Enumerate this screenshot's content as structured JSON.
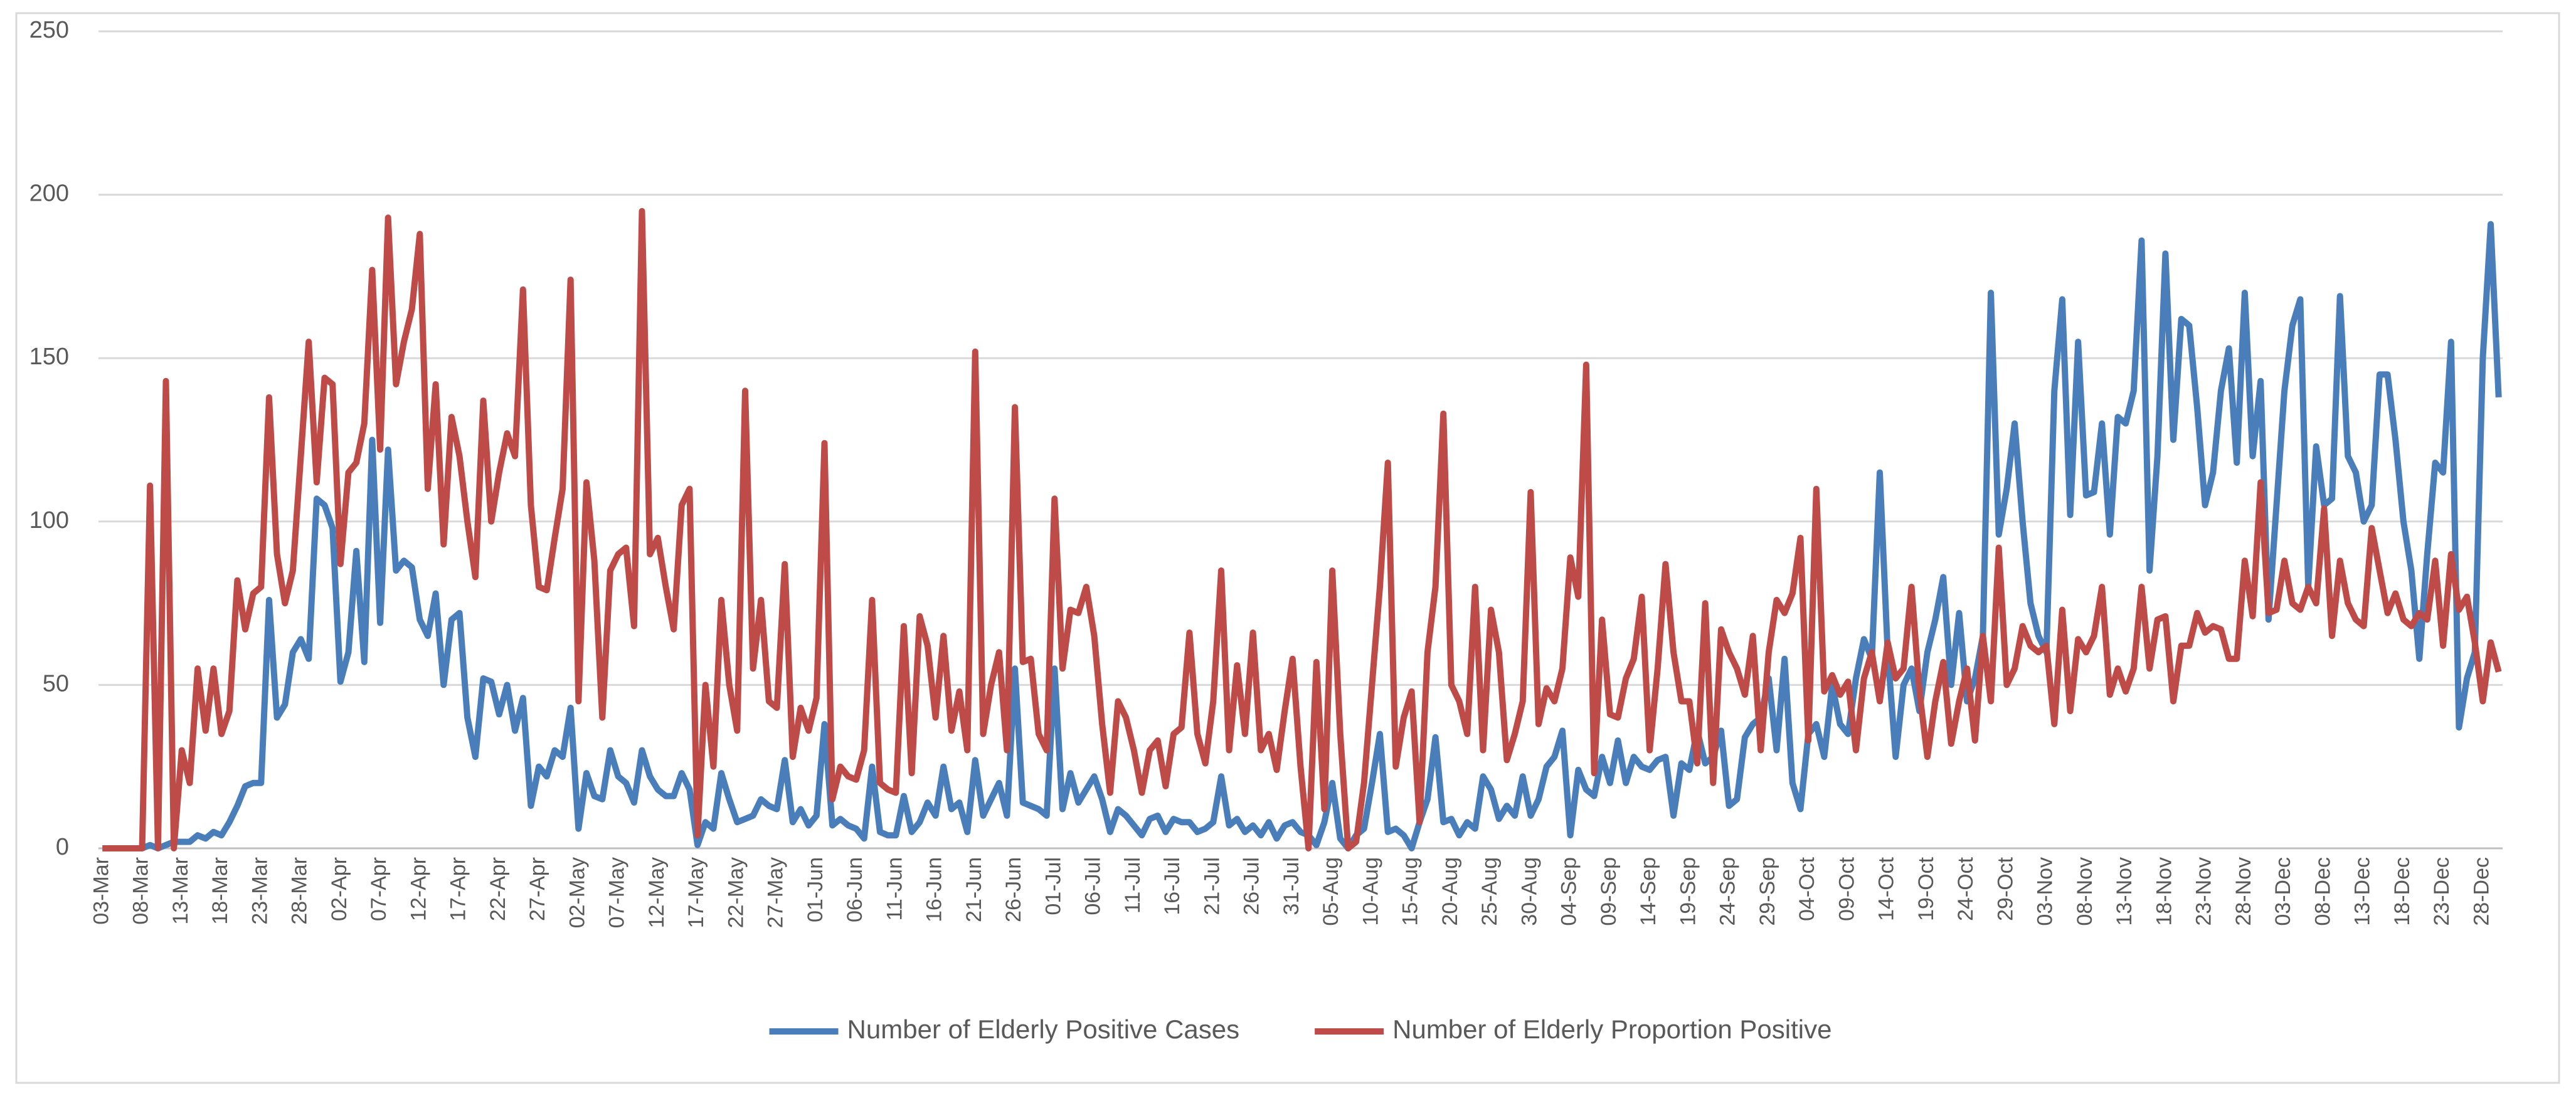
{
  "chart_data": {
    "type": "line",
    "categories": [
      "03-Mar",
      null,
      null,
      null,
      null,
      "08-Mar",
      null,
      null,
      null,
      null,
      "13-Mar",
      null,
      null,
      null,
      null,
      "18-Mar",
      null,
      null,
      null,
      null,
      "23-Mar",
      null,
      null,
      null,
      null,
      "28-Mar",
      null,
      null,
      null,
      null,
      "02-Apr",
      null,
      null,
      null,
      null,
      "07-Apr",
      null,
      null,
      null,
      null,
      "12-Apr",
      null,
      null,
      null,
      null,
      "17-Apr",
      null,
      null,
      null,
      null,
      "22-Apr",
      null,
      null,
      null,
      null,
      "27-Apr",
      null,
      null,
      null,
      null,
      "02-May",
      null,
      null,
      null,
      null,
      "07-May",
      null,
      null,
      null,
      null,
      "12-May",
      null,
      null,
      null,
      null,
      "17-May",
      null,
      null,
      null,
      null,
      "22-May",
      null,
      null,
      null,
      null,
      "27-May",
      null,
      null,
      null,
      null,
      "01-Jun",
      null,
      null,
      null,
      null,
      "06-Jun",
      null,
      null,
      null,
      null,
      "11-Jun",
      null,
      null,
      null,
      null,
      "16-Jun",
      null,
      null,
      null,
      null,
      "21-Jun",
      null,
      null,
      null,
      null,
      "26-Jun",
      null,
      null,
      null,
      null,
      "01-Jul",
      null,
      null,
      null,
      null,
      "06-Jul",
      null,
      null,
      null,
      null,
      "11-Jul",
      null,
      null,
      null,
      null,
      "16-Jul",
      null,
      null,
      null,
      null,
      "21-Jul",
      null,
      null,
      null,
      null,
      "26-Jul",
      null,
      null,
      null,
      null,
      "31-Jul",
      null,
      null,
      null,
      null,
      "05-Aug",
      null,
      null,
      null,
      null,
      "10-Aug",
      null,
      null,
      null,
      null,
      "15-Aug",
      null,
      null,
      null,
      null,
      "20-Aug",
      null,
      null,
      null,
      null,
      "25-Aug",
      null,
      null,
      null,
      null,
      "30-Aug",
      null,
      null,
      null,
      null,
      "04-Sep",
      null,
      null,
      null,
      null,
      "09-Sep",
      null,
      null,
      null,
      null,
      "14-Sep",
      null,
      null,
      null,
      null,
      "19-Sep",
      null,
      null,
      null,
      null,
      "24-Sep",
      null,
      null,
      null,
      null,
      "29-Sep",
      null,
      null,
      null,
      null,
      "04-Oct",
      null,
      null,
      null,
      null,
      "09-Oct",
      null,
      null,
      null,
      null,
      "14-Oct",
      null,
      null,
      null,
      null,
      "19-Oct",
      null,
      null,
      null,
      null,
      "24-Oct",
      null,
      null,
      null,
      null,
      "29-Oct",
      null,
      null,
      null,
      null,
      "03-Nov",
      null,
      null,
      null,
      null,
      "08-Nov",
      null,
      null,
      null,
      null,
      "13-Nov",
      null,
      null,
      null,
      null,
      "18-Nov",
      null,
      null,
      null,
      null,
      "23-Nov",
      null,
      null,
      null,
      null,
      "28-Nov",
      null,
      null,
      null,
      null,
      "03-Dec",
      null,
      null,
      null,
      null,
      "08-Dec",
      null,
      null,
      null,
      null,
      "13-Dec",
      null,
      null,
      null,
      null,
      "18-Dec",
      null,
      null,
      null,
      null,
      "23-Dec",
      null,
      null,
      null,
      null,
      "28-Dec",
      null,
      null
    ],
    "series": [
      {
        "name": "Number of Elderly Positive Cases",
        "color": "#4a7ebb",
        "values": [
          0,
          0,
          0,
          0,
          0,
          0,
          1,
          0,
          1,
          2,
          2,
          2,
          4,
          3,
          5,
          4,
          8,
          13,
          19,
          20,
          20,
          76,
          40,
          44,
          60,
          64,
          58,
          107,
          105,
          98,
          51,
          60,
          91,
          57,
          125,
          69,
          122,
          85,
          88,
          86,
          70,
          65,
          78,
          50,
          70,
          72,
          40,
          28,
          52,
          51,
          41,
          50,
          36,
          46,
          13,
          25,
          22,
          30,
          28,
          43,
          6,
          23,
          16,
          15,
          30,
          22,
          20,
          14,
          30,
          22,
          18,
          16,
          16,
          23,
          18,
          1,
          8,
          6,
          23,
          15,
          8,
          9,
          10,
          15,
          13,
          12,
          27,
          8,
          12,
          7,
          10,
          38,
          7,
          9,
          7,
          6,
          3,
          25,
          5,
          4,
          4,
          16,
          5,
          8,
          14,
          10,
          25,
          12,
          14,
          5,
          27,
          10,
          15,
          20,
          10,
          55,
          14,
          13,
          12,
          10,
          55,
          12,
          23,
          14,
          18,
          22,
          15,
          5,
          12,
          10,
          7,
          4,
          9,
          10,
          5,
          9,
          8,
          8,
          5,
          6,
          8,
          22,
          7,
          9,
          5,
          7,
          4,
          8,
          3,
          7,
          8,
          5,
          4,
          1,
          8,
          20,
          3,
          0,
          4,
          6,
          20,
          35,
          5,
          6,
          4,
          0,
          8,
          15,
          34,
          8,
          9,
          4,
          8,
          6,
          22,
          18,
          9,
          13,
          10,
          22,
          10,
          15,
          25,
          28,
          36,
          4,
          24,
          18,
          16,
          28,
          20,
          33,
          20,
          28,
          25,
          24,
          27,
          28,
          10,
          26,
          24,
          36,
          26,
          28,
          36,
          13,
          15,
          34,
          38,
          40,
          52,
          30,
          58,
          20,
          12,
          35,
          38,
          28,
          50,
          38,
          35,
          52,
          64,
          58,
          115,
          60,
          28,
          50,
          55,
          42,
          60,
          70,
          83,
          50,
          72,
          45,
          52,
          65,
          170,
          96,
          110,
          130,
          100,
          75,
          65,
          60,
          140,
          168,
          102,
          155,
          108,
          109,
          130,
          96,
          132,
          130,
          140,
          186,
          85,
          120,
          182,
          125,
          162,
          160,
          135,
          105,
          115,
          140,
          153,
          118,
          170,
          120,
          143,
          70,
          105,
          140,
          160,
          168,
          80,
          123,
          105,
          107,
          169,
          120,
          115,
          100,
          105,
          145,
          145,
          125,
          100,
          85,
          58,
          90,
          118,
          115,
          155,
          37,
          52,
          60,
          150,
          191,
          138
        ]
      },
      {
        "name": "Number of Elderly Proportion Positive",
        "color": "#be4b48",
        "values": [
          0,
          0,
          0,
          0,
          0,
          0,
          111,
          0,
          143,
          0,
          30,
          20,
          55,
          36,
          55,
          35,
          42,
          82,
          67,
          78,
          80,
          138,
          90,
          75,
          85,
          120,
          155,
          112,
          144,
          142,
          87,
          115,
          118,
          130,
          177,
          122,
          193,
          142,
          155,
          165,
          188,
          110,
          142,
          93,
          132,
          120,
          100,
          83,
          137,
          100,
          115,
          127,
          120,
          171,
          105,
          80,
          79,
          95,
          110,
          174,
          45,
          112,
          88,
          40,
          85,
          90,
          92,
          68,
          195,
          90,
          95,
          80,
          67,
          105,
          110,
          4,
          50,
          25,
          76,
          50,
          36,
          140,
          55,
          76,
          45,
          43,
          87,
          28,
          43,
          36,
          46,
          124,
          15,
          25,
          22,
          21,
          30,
          76,
          20,
          18,
          17,
          68,
          23,
          71,
          62,
          40,
          65,
          36,
          48,
          30,
          152,
          35,
          50,
          60,
          30,
          135,
          57,
          58,
          35,
          30,
          107,
          55,
          73,
          72,
          80,
          65,
          38,
          17,
          45,
          40,
          30,
          17,
          30,
          33,
          19,
          35,
          37,
          66,
          35,
          26,
          45,
          85,
          30,
          56,
          35,
          66,
          30,
          35,
          24,
          42,
          58,
          25,
          0,
          57,
          12,
          85,
          35,
          0,
          2,
          20,
          50,
          80,
          118,
          25,
          40,
          48,
          8,
          60,
          80,
          133,
          50,
          45,
          35,
          80,
          30,
          73,
          60,
          27,
          35,
          45,
          109,
          38,
          49,
          45,
          55,
          89,
          77,
          148,
          23,
          70,
          41,
          40,
          52,
          58,
          77,
          30,
          55,
          87,
          60,
          45,
          45,
          26,
          75,
          20,
          67,
          60,
          55,
          47,
          65,
          30,
          60,
          76,
          72,
          78,
          95,
          33,
          110,
          48,
          53,
          47,
          51,
          30,
          52,
          60,
          45,
          63,
          52,
          55,
          80,
          48,
          28,
          45,
          57,
          32,
          45,
          55,
          33,
          65,
          45,
          92,
          50,
          55,
          68,
          62,
          60,
          62,
          38,
          73,
          42,
          64,
          60,
          65,
          80,
          47,
          55,
          48,
          55,
          80,
          55,
          70,
          71,
          45,
          62,
          62,
          72,
          66,
          68,
          67,
          58,
          58,
          88,
          71,
          112,
          72,
          73,
          88,
          75,
          73,
          80,
          75,
          104,
          65,
          88,
          75,
          70,
          68,
          98,
          85,
          72,
          78,
          70,
          68,
          72,
          70,
          88,
          62,
          90,
          73,
          77,
          63,
          45,
          63,
          54
        ]
      }
    ],
    "ylim": [
      0,
      250
    ],
    "yticks": [
      0,
      50,
      100,
      150,
      200,
      250
    ],
    "grid": true,
    "legend": "bottom"
  }
}
